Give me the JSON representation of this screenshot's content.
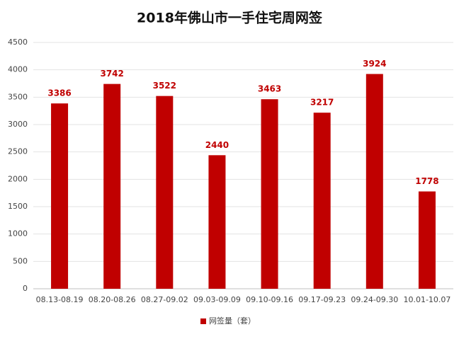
{
  "chart_data": {
    "type": "bar",
    "title": "2018年佛山市一手住宅周网签",
    "categories": [
      "08.13-08.19",
      "08.20-08.26",
      "08.27-09.02",
      "09.03-09.09",
      "09.10-09.16",
      "09.17-09.23",
      "09.24-09.30",
      "10.01-10.07"
    ],
    "series": [
      {
        "name": "网签量（套）",
        "color": "#c00000",
        "values": [
          3386,
          3742,
          3522,
          2440,
          3463,
          3217,
          3924,
          1778
        ]
      }
    ],
    "ylim": [
      0,
      4500
    ],
    "yticks": [
      0,
      500,
      1000,
      1500,
      2000,
      2500,
      3000,
      3500,
      4000,
      4500
    ],
    "grid": true,
    "legend": "bottom"
  }
}
